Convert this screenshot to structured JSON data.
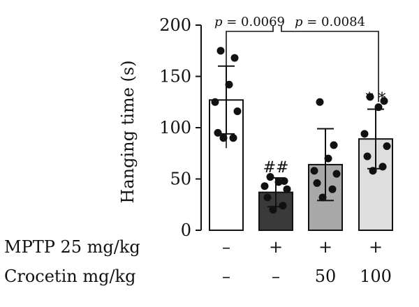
{
  "chart_data": {
    "type": "bar",
    "ylabel": "Hanging time (s)",
    "ylim": [
      0,
      200
    ],
    "yticks": [
      0,
      50,
      100,
      150,
      200
    ],
    "grid": false,
    "groups": [
      {
        "mptp": "–",
        "crocetin": "–",
        "mean": 127,
        "sd": 33,
        "points": [
          175,
          168,
          142,
          125,
          116,
          95,
          90,
          90
        ],
        "annotation": ""
      },
      {
        "mptp": "+",
        "crocetin": "–",
        "mean": 37,
        "sd": 14,
        "points": [
          52,
          48,
          47,
          43,
          40,
          32,
          24,
          20
        ],
        "annotation": "##"
      },
      {
        "mptp": "+",
        "crocetin": "50",
        "mean": 64,
        "sd": 35,
        "points": [
          125,
          83,
          70,
          58,
          55,
          46,
          40,
          32
        ],
        "annotation": ""
      },
      {
        "mptp": "+",
        "crocetin": "100",
        "mean": 89,
        "sd": 29,
        "points": [
          130,
          126,
          120,
          94,
          82,
          72,
          62,
          58
        ],
        "annotation": "* *"
      }
    ],
    "row_labels": {
      "mptp": "MPTP 25 mg/kg",
      "crocetin": "Crocetin mg/kg"
    },
    "comparisons": [
      {
        "from": 0,
        "to": 1,
        "p_var": "p",
        "p_text": " = 0.0069"
      },
      {
        "from": 1,
        "to": 3,
        "p_var": "p",
        "p_text": " = 0.0084"
      }
    ],
    "bar_colors": [
      "#ffffff",
      "#3a3a3a",
      "#a9a9a9",
      "#dedede"
    ],
    "point_color": "#111111"
  }
}
